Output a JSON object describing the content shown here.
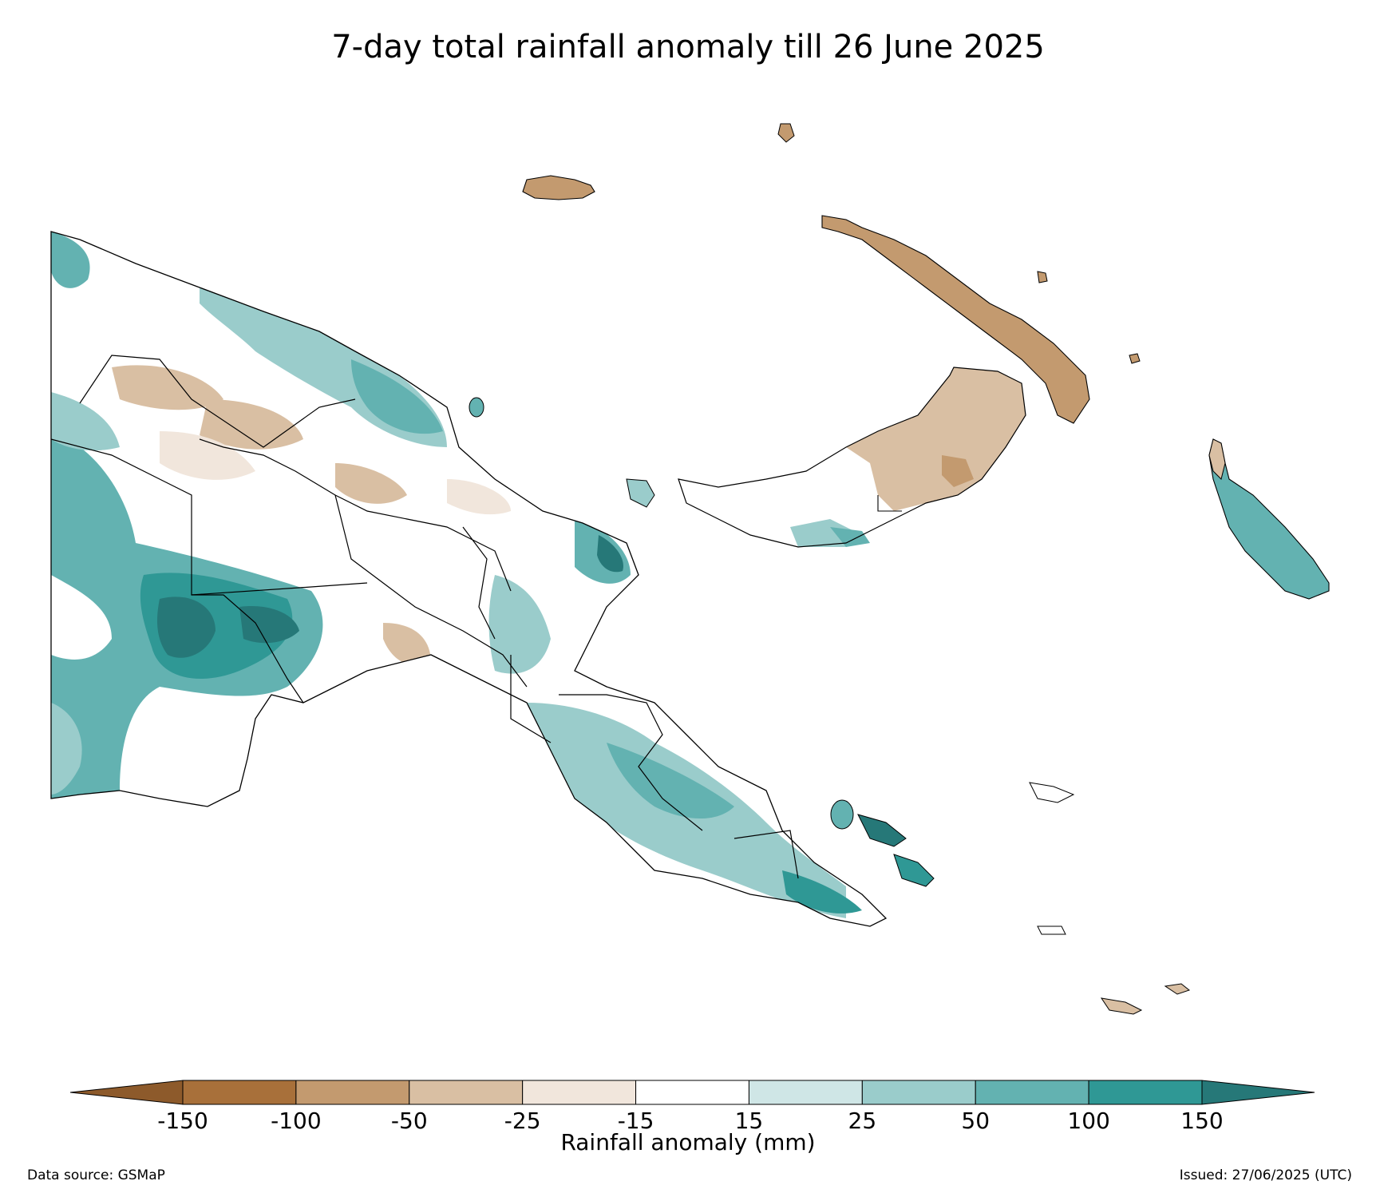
{
  "title": "7-day total rainfall anomaly till 26 June 2025",
  "colorbar": {
    "label": "Rainfall anomaly (mm)",
    "ticks": [
      "-150",
      "-100",
      "-50",
      "-25",
      "-15",
      "15",
      "25",
      "50",
      "100",
      "150"
    ],
    "colors": [
      "#a8703a",
      "#c39a6f",
      "#d9bfa3",
      "#f1e6dc",
      "#ffffff",
      "#cfe6e6",
      "#9acccb",
      "#63b2b1",
      "#2f9895"
    ],
    "extend_low_color": "#8d5a2b",
    "extend_high_color": "#267878"
  },
  "footer": {
    "data_source": "Data source: GSMaP",
    "issued": "Issued: 27/06/2025 (UTC)"
  }
}
